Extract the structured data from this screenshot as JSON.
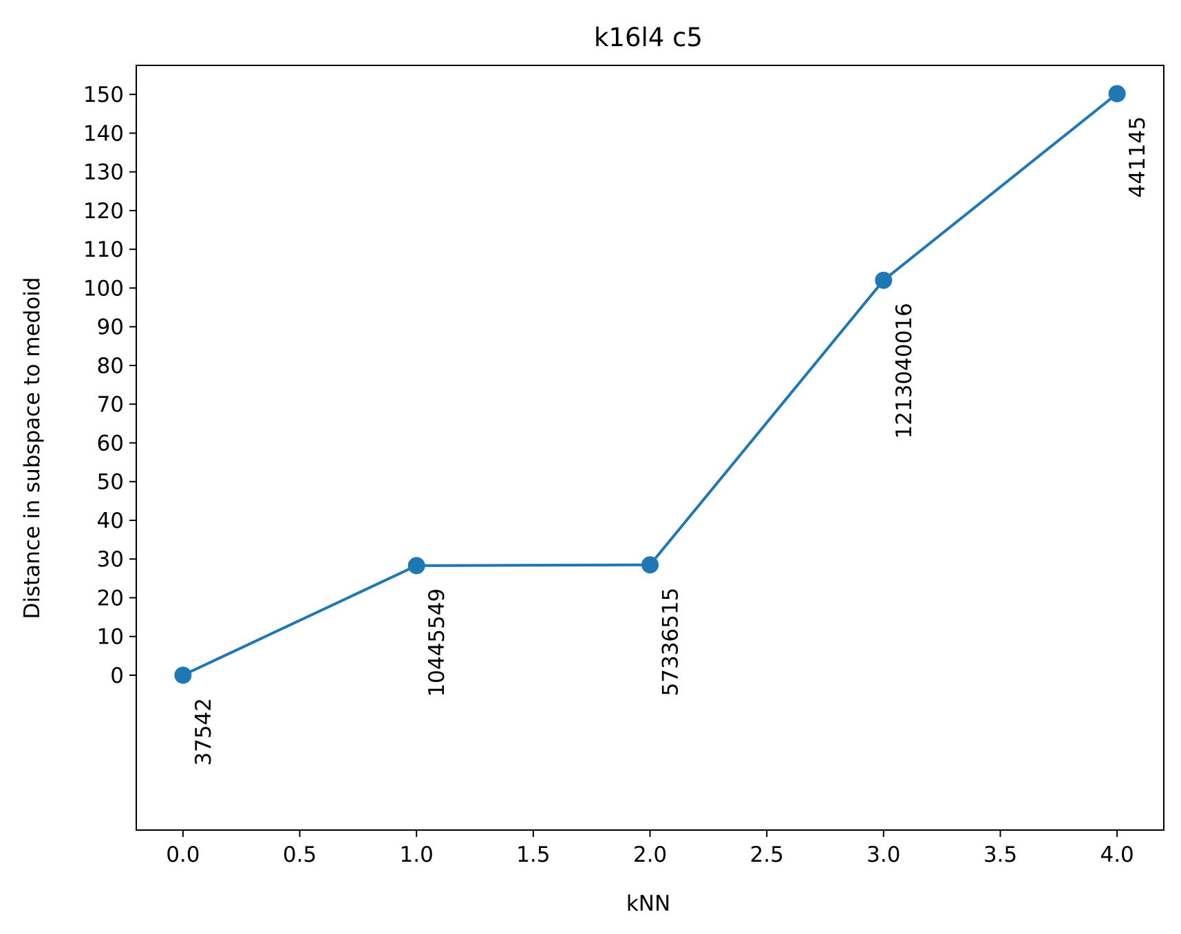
{
  "chart_data": {
    "type": "line",
    "title": "k16l4 c5",
    "xlabel": "kNN",
    "ylabel": "Distance in subspace to medoid",
    "x": [
      0,
      1,
      2,
      3,
      4
    ],
    "y": [
      0,
      28.3,
      28.5,
      102,
      150.2
    ],
    "point_labels": [
      "37542",
      "10445549",
      "57336515",
      "1213040016",
      "441145"
    ],
    "xlim": [
      -0.2,
      4.2
    ],
    "ylim": [
      -40,
      157.5
    ],
    "xticks": [
      0.0,
      0.5,
      1.0,
      1.5,
      2.0,
      2.5,
      3.0,
      3.5,
      4.0
    ],
    "xtick_labels": [
      "0.0",
      "0.5",
      "1.0",
      "1.5",
      "2.0",
      "2.5",
      "3.0",
      "3.5",
      "4.0"
    ],
    "yticks": [
      0,
      10,
      20,
      30,
      40,
      50,
      60,
      70,
      80,
      90,
      100,
      110,
      120,
      130,
      140,
      150
    ],
    "ytick_labels": [
      "0",
      "10",
      "20",
      "30",
      "40",
      "50",
      "60",
      "70",
      "80",
      "90",
      "100",
      "110",
      "120",
      "130",
      "140",
      "150"
    ],
    "grid": false,
    "series_color": "#1f77b4"
  }
}
